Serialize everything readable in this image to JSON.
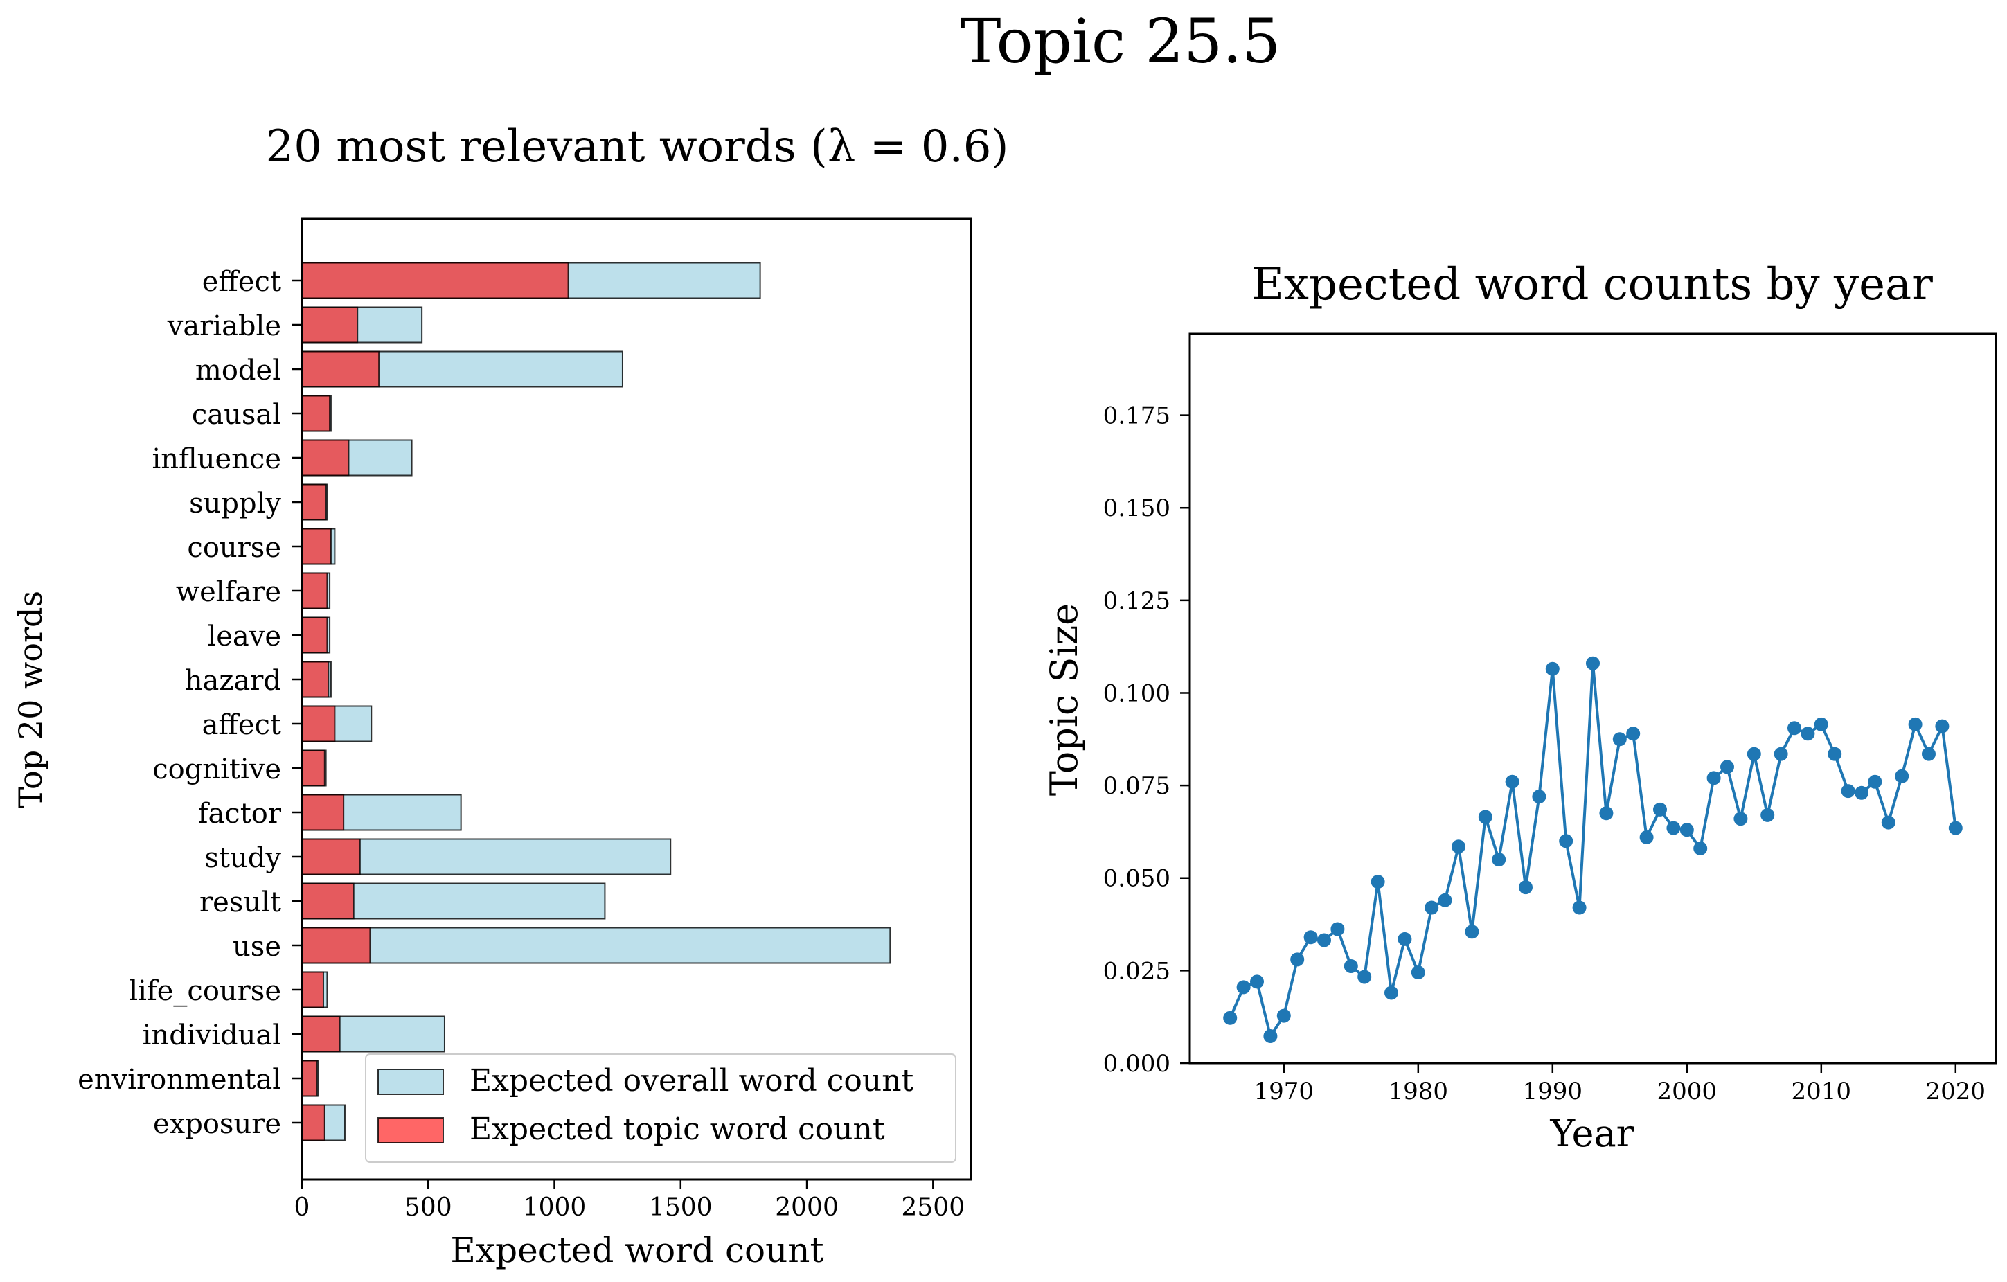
{
  "figure": {
    "title": "Topic 25.5"
  },
  "colors": {
    "overall_bar": "#add8e6",
    "topic_bar": "#ff0000",
    "line": "#1f77b4",
    "axes": "#000000"
  },
  "chart_data": [
    {
      "type": "bar",
      "orientation": "horizontal",
      "title": "20 most relevant words (λ = 0.6)",
      "xlabel": "Expected word count",
      "ylabel": "Top 20 words",
      "xlim": [
        0,
        2650
      ],
      "xticks": [
        "0",
        "500",
        "1000",
        "1500",
        "2000",
        "2500"
      ],
      "legend_position": "bottom-right",
      "categories": [
        "effect",
        "variable",
        "model",
        "causal",
        "influence",
        "supply",
        "course",
        "welfare",
        "leave",
        "hazard",
        "affect",
        "cognitive",
        "factor",
        "study",
        "result",
        "use",
        "life_course",
        "individual",
        "environmental",
        "exposure"
      ],
      "series": [
        {
          "name": "Expected overall word count",
          "values": [
            1815,
            475,
            1270,
            115,
            435,
            100,
            130,
            110,
            110,
            115,
            275,
            95,
            630,
            1460,
            1200,
            2330,
            100,
            565,
            65,
            170
          ]
        },
        {
          "name": "Expected topic word count",
          "values": [
            1055,
            220,
            305,
            110,
            185,
            95,
            115,
            100,
            100,
            105,
            130,
            90,
            165,
            230,
            205,
            270,
            85,
            150,
            60,
            90
          ]
        }
      ]
    },
    {
      "type": "line",
      "title": "Expected word counts by year",
      "xlabel": "Year",
      "ylabel": "Topic Size",
      "xlim": [
        1963,
        2023
      ],
      "ylim": [
        0,
        0.197
      ],
      "xticks": [
        "1970",
        "1980",
        "1990",
        "2000",
        "2010",
        "2020"
      ],
      "yticks": [
        "0.000",
        "0.025",
        "0.050",
        "0.075",
        "0.100",
        "0.125",
        "0.150",
        "0.175"
      ],
      "grid": false,
      "series": [
        {
          "x": [
            1966,
            1967,
            1968,
            1969,
            1970,
            1971,
            1972,
            1973,
            1974,
            1975,
            1976,
            1977,
            1978,
            1979,
            1980,
            1981,
            1982,
            1983,
            1984,
            1985,
            1986,
            1987,
            1988,
            1989,
            1990,
            1991,
            1992,
            1993,
            1994,
            1995,
            1996,
            1997,
            1998,
            1999,
            2000,
            2001,
            2002,
            2003,
            2004,
            2005,
            2006,
            2007,
            2008,
            2009,
            2010,
            2011,
            2012,
            2013,
            2014,
            2015,
            2016,
            2017,
            2018,
            2019,
            2020
          ],
          "y": [
            0.0122,
            0.0205,
            0.022,
            0.0073,
            0.0128,
            0.028,
            0.034,
            0.0332,
            0.0362,
            0.0262,
            0.0233,
            0.049,
            0.019,
            0.0335,
            0.0245,
            0.042,
            0.044,
            0.0585,
            0.0355,
            0.0665,
            0.055,
            0.076,
            0.0475,
            0.072,
            0.1065,
            0.06,
            0.042,
            0.108,
            0.0675,
            0.0875,
            0.089,
            0.061,
            0.0685,
            0.0635,
            0.063,
            0.058,
            0.077,
            0.08,
            0.066,
            0.0835,
            0.067,
            0.0835,
            0.0905,
            0.089,
            0.0915,
            0.0835,
            0.0735,
            0.073,
            0.076,
            0.065,
            0.0775,
            0.0915,
            0.0835,
            0.091,
            0.0635
          ]
        }
      ]
    }
  ]
}
